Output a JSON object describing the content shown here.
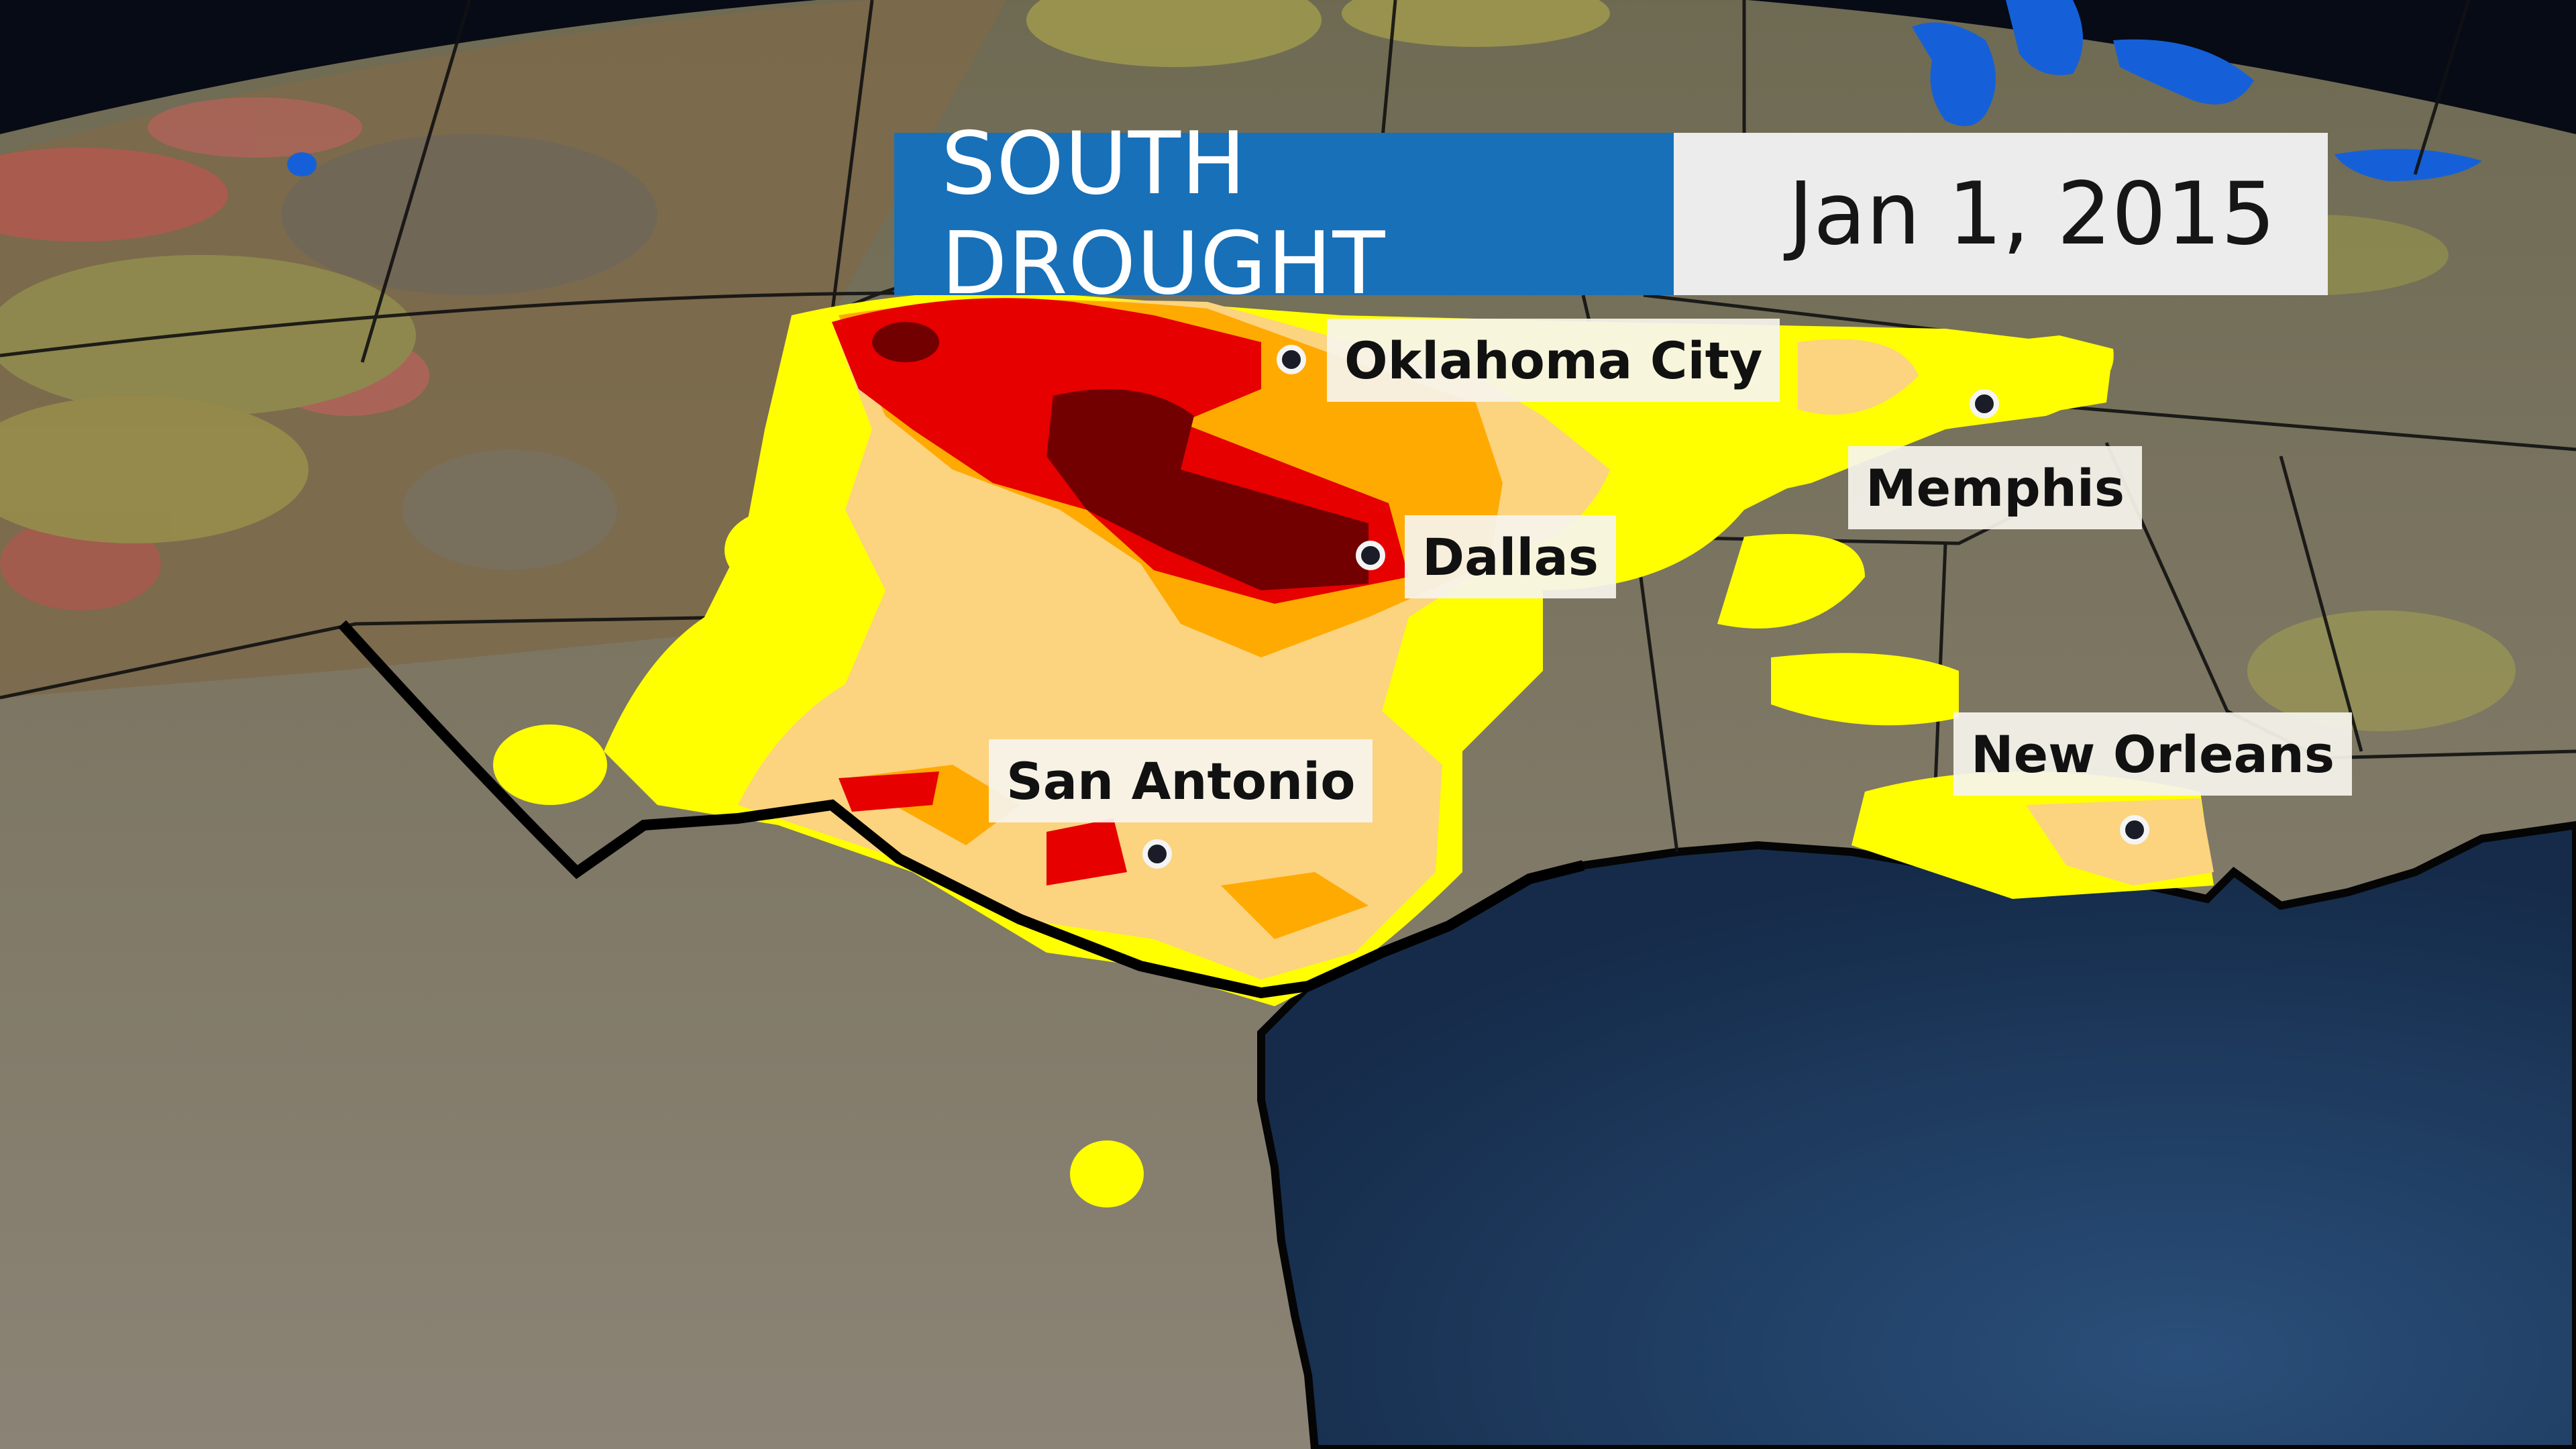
{
  "title": "SOUTH DROUGHT",
  "date": "Jan 1, 2015",
  "cities": [
    {
      "name": "Oklahoma City"
    },
    {
      "name": "Dallas"
    },
    {
      "name": "San Antonio"
    },
    {
      "name": "Memphis"
    },
    {
      "name": "New Orleans"
    }
  ],
  "drought_colors": {
    "abnormally_dry": "#ffff00",
    "moderate": "#fcd37f",
    "severe": "#ffaa00",
    "extreme": "#e60000",
    "exceptional": "#730000"
  },
  "colors": {
    "title_background": "#1770b8",
    "date_background": "#ececec",
    "ocean": "#1e3a5f",
    "land": "#7a6f52"
  }
}
